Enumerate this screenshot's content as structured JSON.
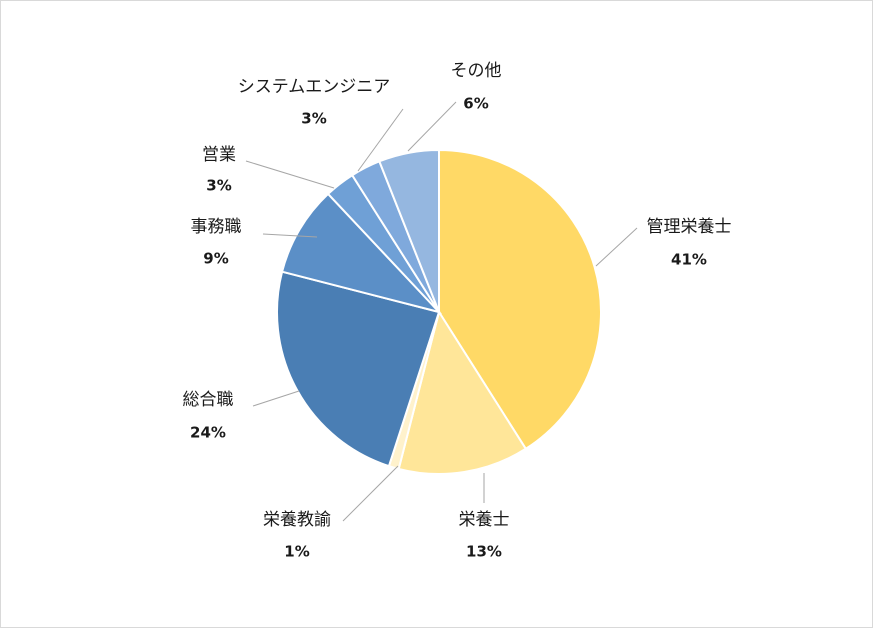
{
  "chart_data": {
    "type": "pie",
    "title": "",
    "start_angle_deg": 0,
    "direction": "clockwise",
    "legend": "none",
    "slices": [
      {
        "label": "管理栄養士",
        "value": 41,
        "display": "41%",
        "color": "#FFD966"
      },
      {
        "label": "栄養士",
        "value": 13,
        "display": "13%",
        "color": "#FFE699"
      },
      {
        "label": "栄養教諭",
        "value": 1,
        "display": "1%",
        "color": "#FFF2CC"
      },
      {
        "label": "総合職",
        "value": 24,
        "display": "24%",
        "color": "#4A7EB4"
      },
      {
        "label": "事務職",
        "value": 9,
        "display": "9%",
        "color": "#5B8FC7"
      },
      {
        "label": "営業",
        "value": 3,
        "display": "3%",
        "color": "#6FA0D6"
      },
      {
        "label": "システムエンジニア",
        "value": 3,
        "display": "3%",
        "color": "#7FA9DC"
      },
      {
        "label": "その他",
        "value": 6,
        "display": "6%",
        "color": "#95B7E0"
      }
    ]
  }
}
